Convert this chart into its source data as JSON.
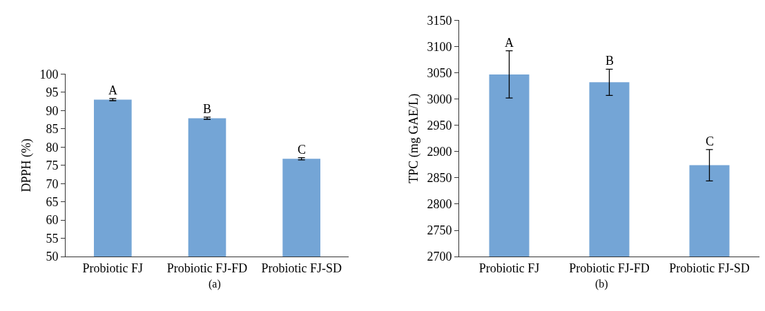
{
  "chart_data": [
    {
      "type": "bar",
      "ylabel": "DPPH (%)",
      "categories": [
        "Probiotic FJ",
        "Probiotic FJ-FD",
        "Probiotic FJ-SD"
      ],
      "values": [
        93.0,
        87.9,
        76.8
      ],
      "errors": [
        0.3,
        0.3,
        0.3
      ],
      "color": "#74a5d6",
      "ylim": [
        50,
        100
      ],
      "yticks": [
        50,
        55,
        60,
        65,
        70,
        75,
        80,
        85,
        90,
        95,
        100
      ],
      "annotations": [
        {
          "text": "A",
          "x": "Probiotic FJ",
          "y": 93.3
        },
        {
          "text": "B",
          "x": "Probiotic FJ-FD",
          "y": 88.2
        },
        {
          "text": "C",
          "x": "Probiotic FJ-SD",
          "y": 77.1
        },
        "(a)"
      ]
    },
    {
      "type": "bar",
      "ylabel": "TPC (mg GAE/L)",
      "categories": [
        "Probiotic FJ",
        "Probiotic FJ-FD",
        "Probiotic FJ-SD"
      ],
      "values": [
        3047,
        3032,
        2874
      ],
      "errors": [
        45,
        25,
        30
      ],
      "color": "#74a5d6",
      "ylim": [
        2700,
        3150
      ],
      "yticks": [
        2700,
        2750,
        2800,
        2850,
        2900,
        2950,
        3000,
        3050,
        3100,
        3150
      ],
      "annotations": [
        {
          "text": "A",
          "x": "Probiotic FJ",
          "y": 3092
        },
        {
          "text": "B",
          "x": "Probiotic FJ-FD",
          "y": 3057
        },
        {
          "text": "C",
          "x": "Probiotic FJ-SD",
          "y": 2904
        },
        "(b)"
      ]
    }
  ]
}
